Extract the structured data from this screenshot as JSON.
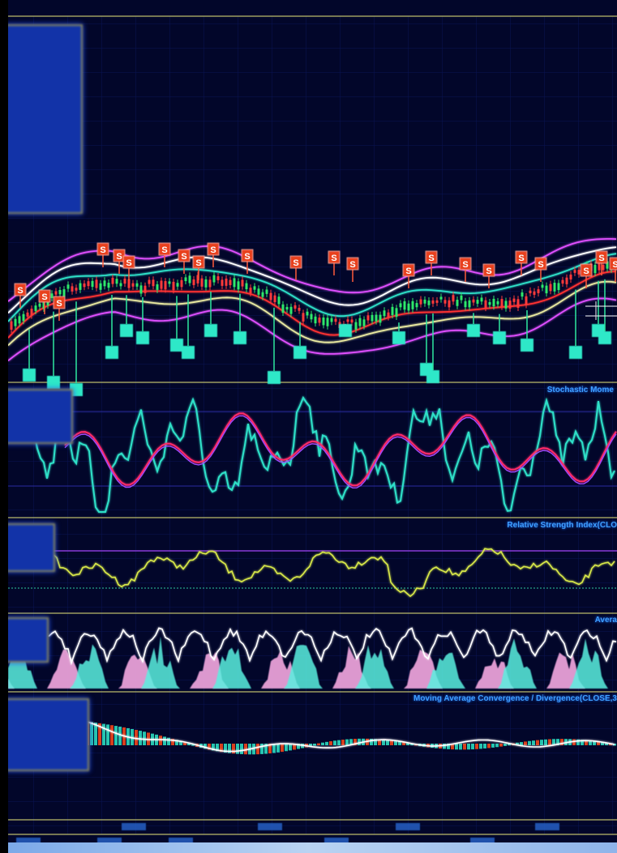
{
  "panels": {
    "stochastic_title": "Stochastic Mome",
    "rsi_title": "Relative Strength Index(CLO",
    "avg_title": "Avera",
    "macd_title": "Moving Average Convergence / Divergence(CLOSE,3"
  },
  "signal_marker": "S",
  "colors": {
    "background": "#02062a",
    "separator": "#b8b86a",
    "signal_box": "#e8401c",
    "buy_box": "#2ee8c8",
    "stoch_fast": "#2fe0c8",
    "stoch_slow": "#ff2a6a",
    "rsi_line": "#d8e84a",
    "envelope": "#e050ff",
    "title_text": "#3fa0ff"
  }
}
